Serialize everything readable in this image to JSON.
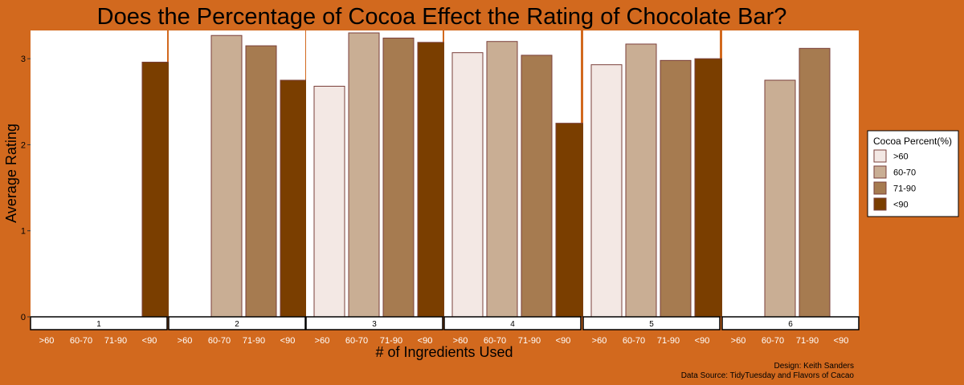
{
  "chart_data": {
    "type": "bar",
    "title": "Does the Percentage of Cocoa Effect the Rating of Chocolate Bar?",
    "xlabel": "# of Ingredients Used",
    "ylabel": "Average Rating",
    "ylim": [
      0,
      3.35
    ],
    "yticks": [
      0,
      1,
      2,
      3
    ],
    "categories": [
      ">60",
      "60-70",
      "71-90",
      "<90"
    ],
    "facets": [
      {
        "label": "1",
        "values": [
          null,
          null,
          null,
          2.96
        ]
      },
      {
        "label": "2",
        "values": [
          null,
          3.27,
          3.15,
          2.75
        ]
      },
      {
        "label": "3",
        "values": [
          2.68,
          3.3,
          3.24,
          3.19
        ]
      },
      {
        "label": "4",
        "values": [
          3.07,
          3.2,
          3.04,
          2.25
        ]
      },
      {
        "label": "5",
        "values": [
          2.93,
          3.17,
          2.98,
          3.0
        ]
      },
      {
        "label": "6",
        "values": [
          null,
          2.75,
          3.12,
          null
        ]
      }
    ],
    "colors": [
      "#f3e8e4",
      "#c9ae94",
      "#a67b50",
      "#7a3e00"
    ],
    "bar_outline": "#7a3f3a",
    "legend": {
      "title": "Cocoa Percent(%)",
      "position": "right",
      "entries": [
        ">60",
        "60-70",
        "71-90",
        "<90"
      ]
    },
    "grid": false
  },
  "caption": {
    "design": "Design: Keith Sanders",
    "source": "Data Source: TidyTuesday and Flavors of Cacao"
  },
  "colors": {
    "background": "#d2691e",
    "panel": "#ffffff"
  }
}
